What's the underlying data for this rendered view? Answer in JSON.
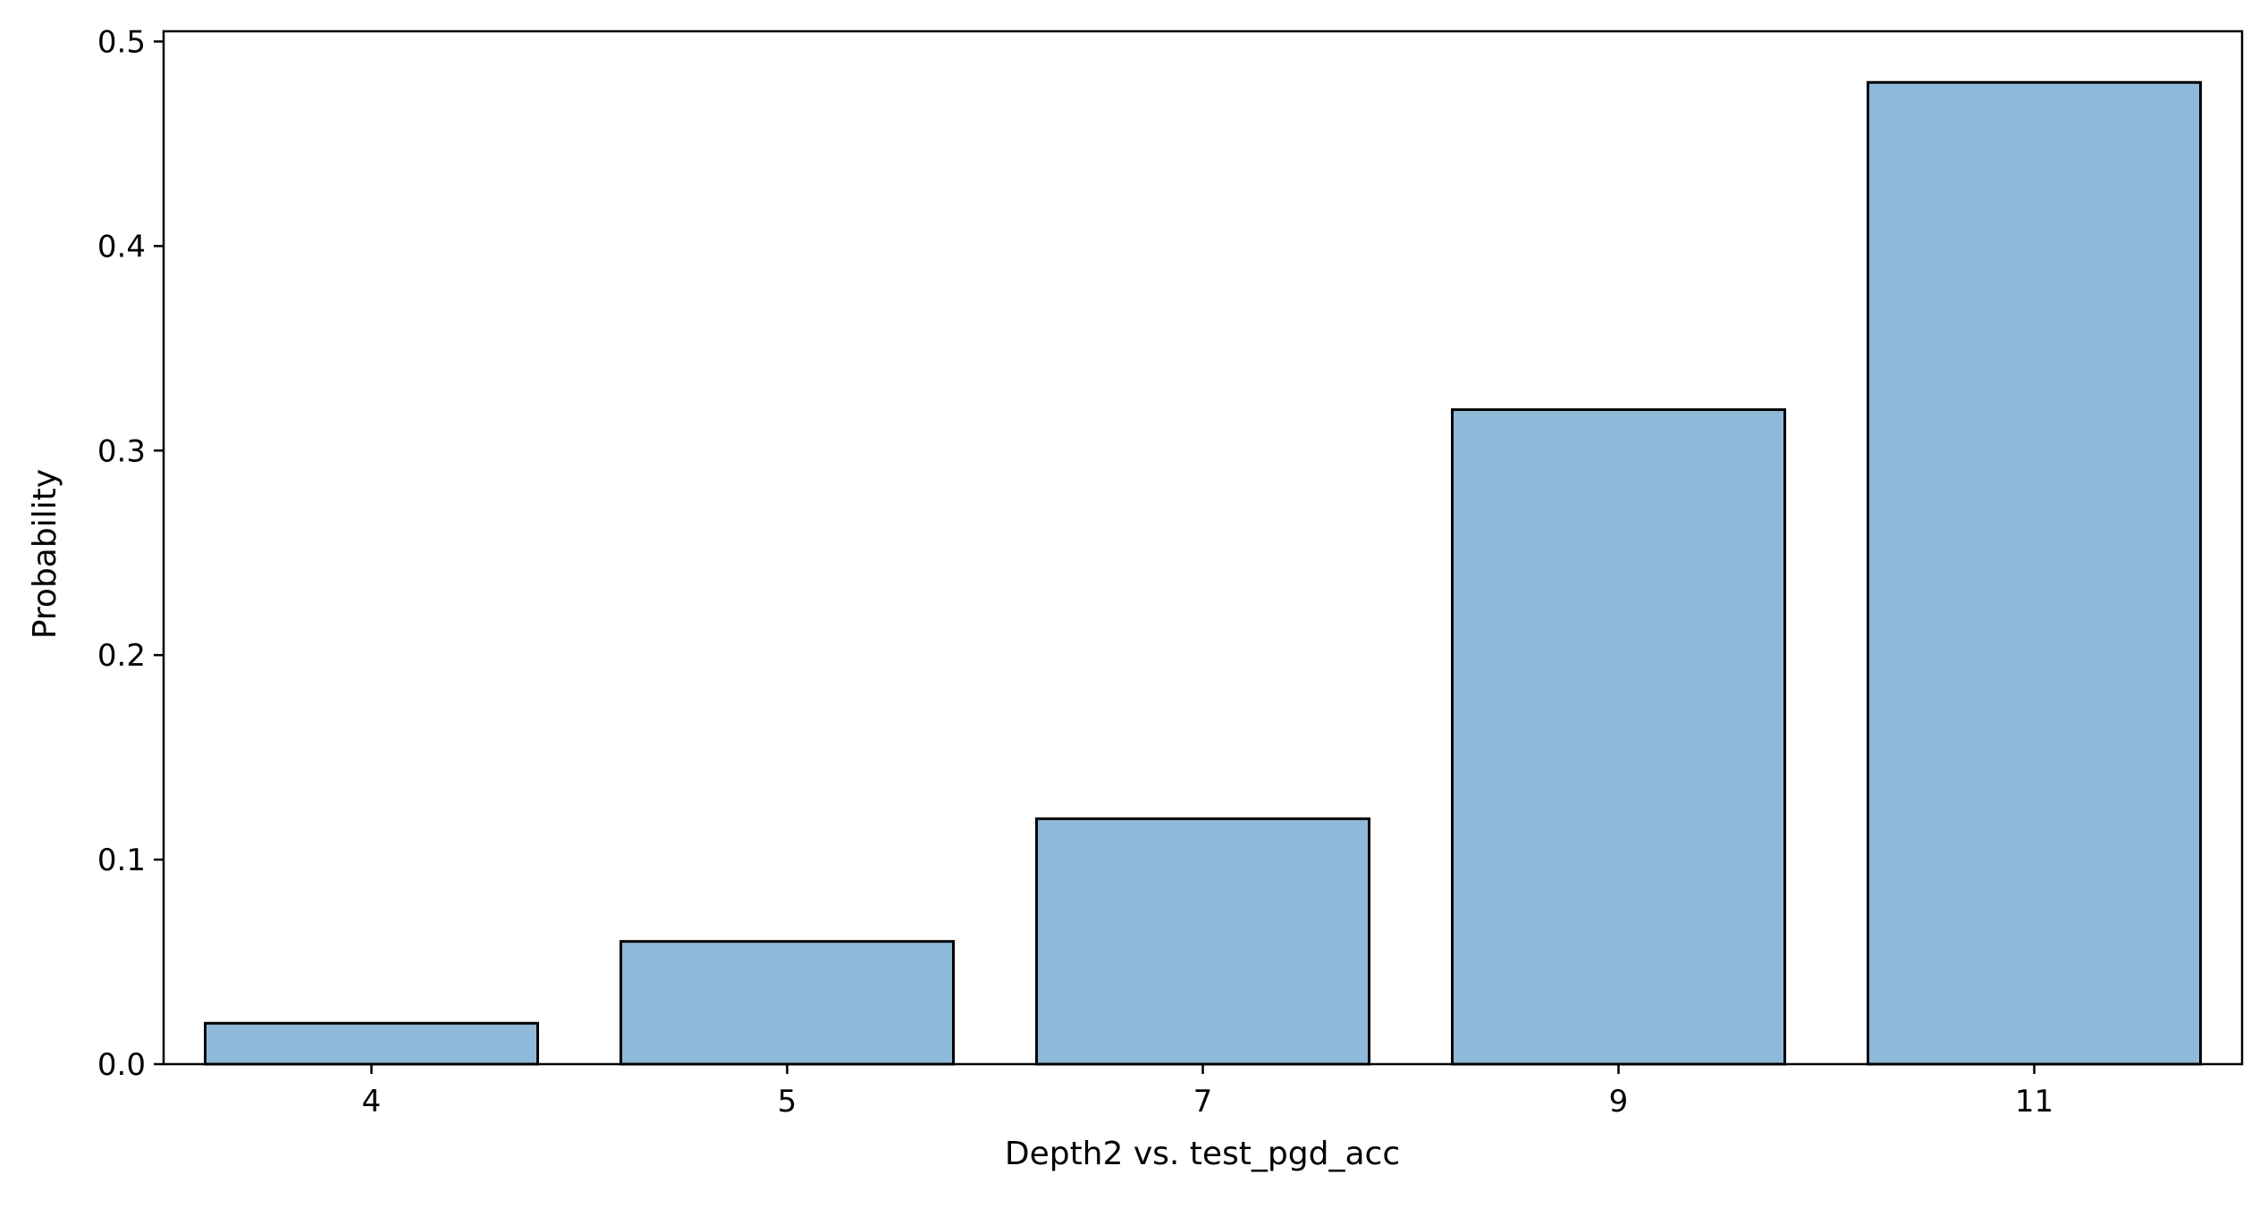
{
  "chart_data": {
    "type": "bar",
    "title": "",
    "xlabel": "Depth2 vs. test_pgd_acc",
    "ylabel": "Probability",
    "categories": [
      "4",
      "5",
      "7",
      "9",
      "11"
    ],
    "values": [
      0.02,
      0.06,
      0.12,
      0.32,
      0.48
    ],
    "ylim": [
      0,
      0.505
    ],
    "yticks": [
      0.0,
      0.1,
      0.2,
      0.3,
      0.4,
      0.5
    ],
    "ytick_labels": [
      "0.0",
      "0.1",
      "0.2",
      "0.3",
      "0.4",
      "0.5"
    ],
    "grid": false,
    "legend": "none",
    "colors": {
      "bar_fill": "#8fb9d9",
      "bar_edge": "#000000",
      "axis": "#000000"
    }
  }
}
